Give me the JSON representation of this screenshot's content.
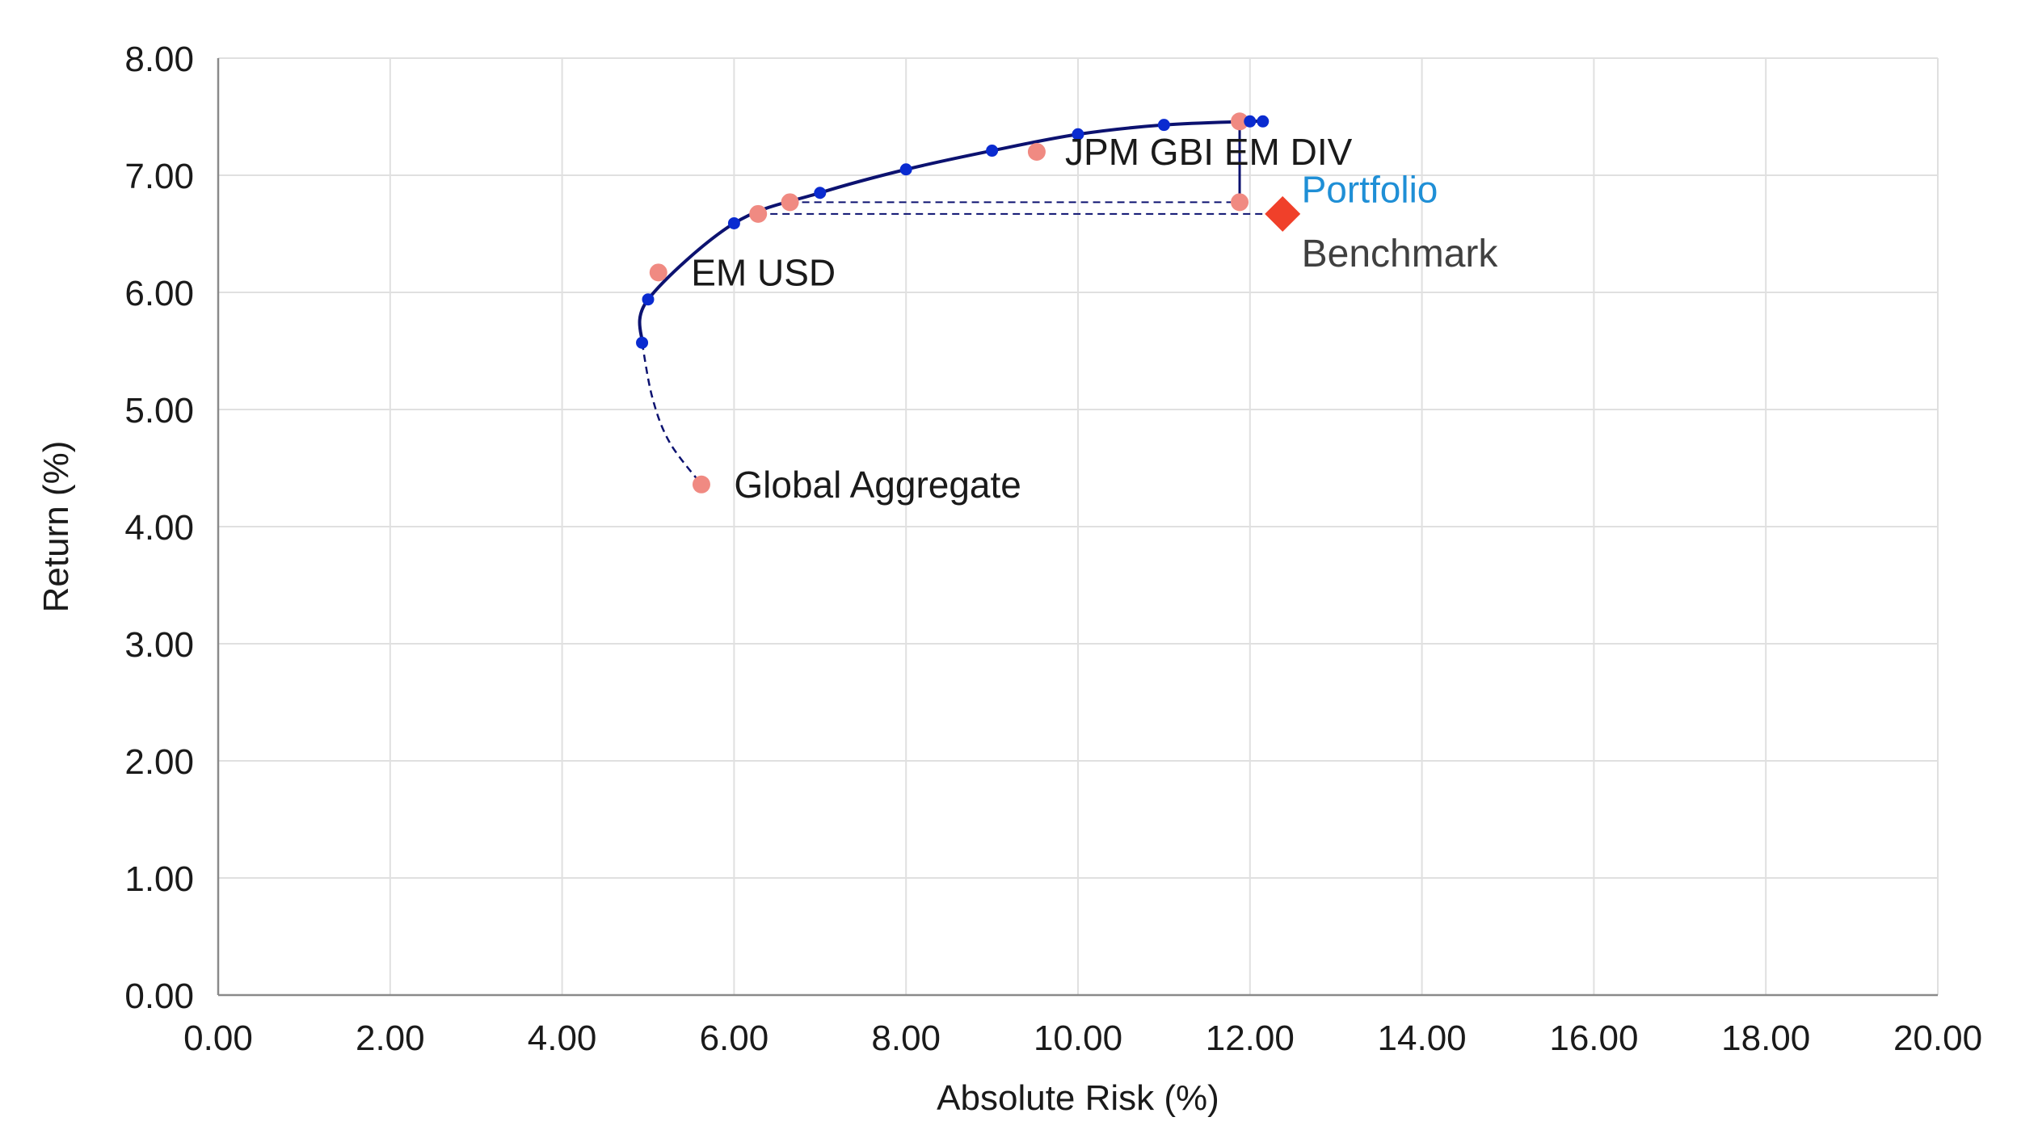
{
  "chart_data": {
    "type": "scatter",
    "title": "",
    "xlabel": "Absolute Risk (%)",
    "ylabel": "Return (%)",
    "xlim": [
      0,
      20
    ],
    "ylim": [
      0,
      8
    ],
    "x_ticks": [
      0,
      2,
      4,
      6,
      8,
      10,
      12,
      14,
      16,
      18,
      20
    ],
    "y_ticks": [
      0,
      1,
      2,
      3,
      4,
      5,
      6,
      7,
      8
    ],
    "x_tick_labels": [
      "0.00",
      "2.00",
      "4.00",
      "6.00",
      "8.00",
      "10.00",
      "12.00",
      "14.00",
      "16.00",
      "18.00",
      "20.00"
    ],
    "y_tick_labels": [
      "0.00",
      "1.00",
      "2.00",
      "3.00",
      "4.00",
      "5.00",
      "6.00",
      "7.00",
      "8.00"
    ],
    "grid": true,
    "colors": {
      "frontier": "#0c1270",
      "frontier_points": "#0a2bd0",
      "assets": "#f08a82",
      "benchmark": "#f0402a",
      "portfolio_text": "#1f8fd6",
      "grid": "#e0e0e0"
    },
    "series": [
      {
        "x": [
          4.93,
          5.0,
          6.0,
          7.0,
          8.0,
          9.0,
          10.0,
          11.0,
          12.0,
          12.15
        ],
        "y": [
          5.57,
          5.94,
          6.59,
          6.85,
          7.05,
          7.21,
          7.35,
          7.43,
          7.46,
          7.46
        ],
        "style": "solid-line-with-markers"
      },
      {
        "x": [
          4.93,
          5.05,
          5.25,
          5.62
        ],
        "y": [
          5.57,
          5.1,
          4.72,
          4.36
        ],
        "style": "dashed-line"
      },
      {
        "x": [
          5.62,
          5.12,
          9.52,
          6.28,
          6.65,
          11.88,
          11.88
        ],
        "y": [
          4.36,
          6.17,
          7.2,
          6.67,
          6.77,
          7.46,
          6.77
        ],
        "style": "markers"
      },
      {
        "x": [
          12.38
        ],
        "y": [
          6.67
        ],
        "style": "diamond-marker"
      }
    ],
    "guides": {
      "dashed_horizontal": [
        {
          "x1": 6.65,
          "x2": 11.88,
          "y": 6.77
        },
        {
          "x1": 6.28,
          "x2": 12.38,
          "y": 6.67
        }
      ],
      "solid_vertical": {
        "x": 11.88,
        "y1": 6.77,
        "y2": 7.46
      }
    },
    "annotations": [
      {
        "text": "Global Aggregate",
        "x": 6.0,
        "y": 4.36,
        "style": "default"
      },
      {
        "text": "EM USD",
        "x": 5.5,
        "y": 6.17,
        "style": "default"
      },
      {
        "text": "JPM GBI EM DIV",
        "x": 9.85,
        "y": 7.2,
        "style": "default"
      },
      {
        "text": "Portfolio",
        "x": 12.6,
        "y": 6.88,
        "style": "blue"
      },
      {
        "text": "Benchmark",
        "x": 12.6,
        "y": 6.33,
        "style": "gray"
      }
    ]
  }
}
